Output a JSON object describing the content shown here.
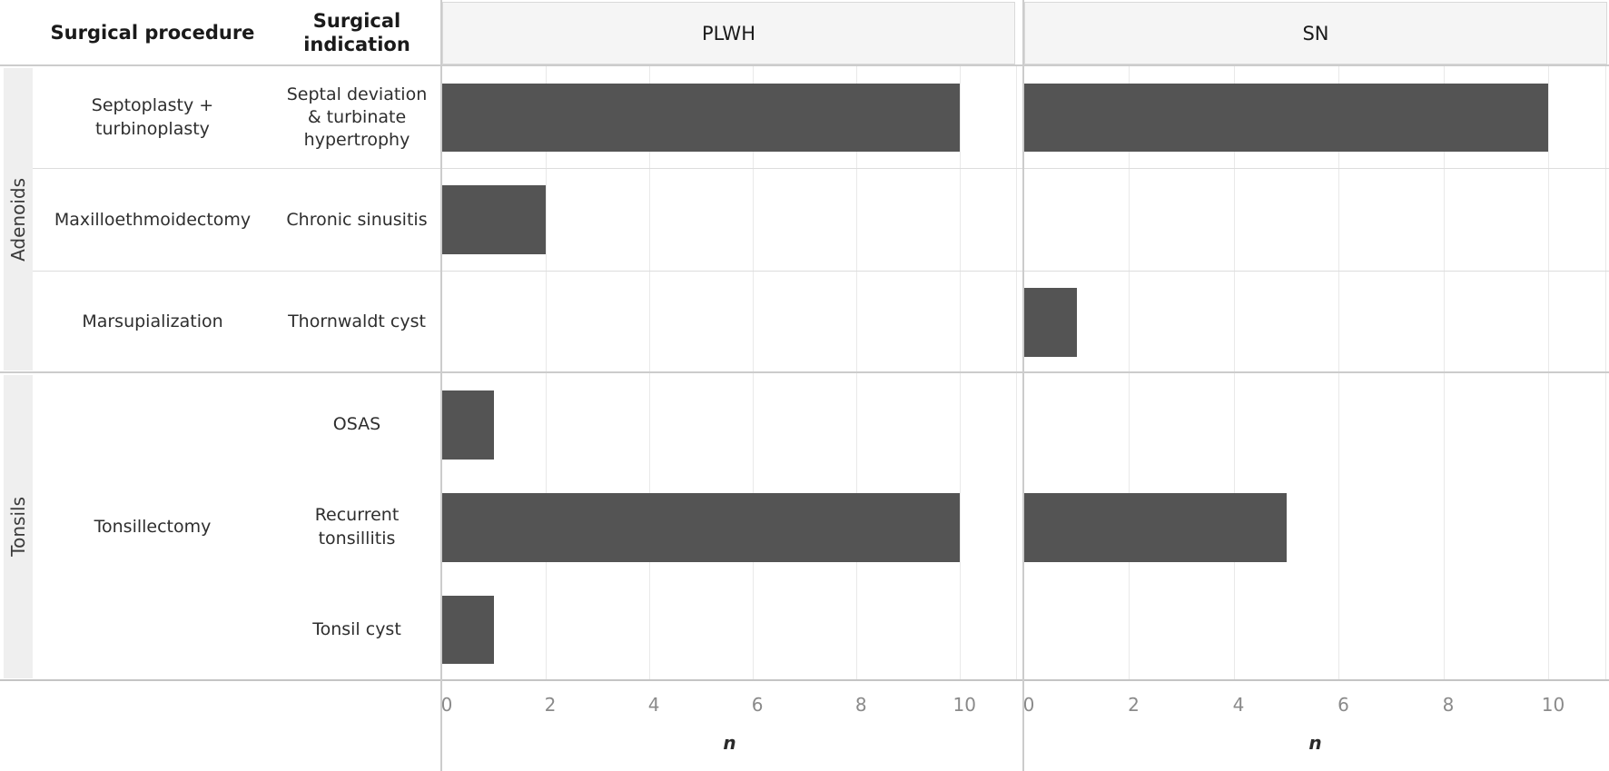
{
  "table": {
    "headers": {
      "procedure": "Surgical procedure",
      "indication": "Surgical indication"
    },
    "groups": [
      {
        "label": "Adenoids",
        "rows": [
          {
            "procedure": "Septoplasty + turbinoplasty",
            "indication": "Septal deviation & turbinate hypertrophy"
          },
          {
            "procedure": "Maxilloethmoidectomy",
            "indication": "Chronic sinusitis"
          },
          {
            "procedure": "Marsupialization",
            "indication": "Thornwaldt cyst"
          }
        ]
      },
      {
        "label": "Tonsils",
        "procedure": "Tonsillectomy",
        "rows": [
          {
            "indication": "OSAS"
          },
          {
            "indication": "Recurrent tonsillitis"
          },
          {
            "indication": "Tonsil cyst"
          }
        ]
      }
    ]
  },
  "chart_data": {
    "type": "bar",
    "orientation": "horizontal",
    "categories": [
      "Septal deviation & turbinate hypertrophy",
      "Chronic sinusitis",
      "Thornwaldt cyst",
      "OSAS",
      "Recurrent tonsillitis",
      "Tonsil cyst"
    ],
    "series": [
      {
        "name": "PLWH",
        "values": [
          10,
          2,
          0,
          1,
          10,
          1
        ]
      },
      {
        "name": "SN",
        "values": [
          10,
          0,
          1,
          0,
          5,
          0
        ]
      }
    ],
    "xlabel": "n",
    "xlim": [
      0,
      11.1
    ],
    "xticks": [
      0,
      2,
      4,
      6,
      8,
      10
    ],
    "grid": true,
    "bar_color": "#545454",
    "gridline_color": "#e9e9e9"
  }
}
